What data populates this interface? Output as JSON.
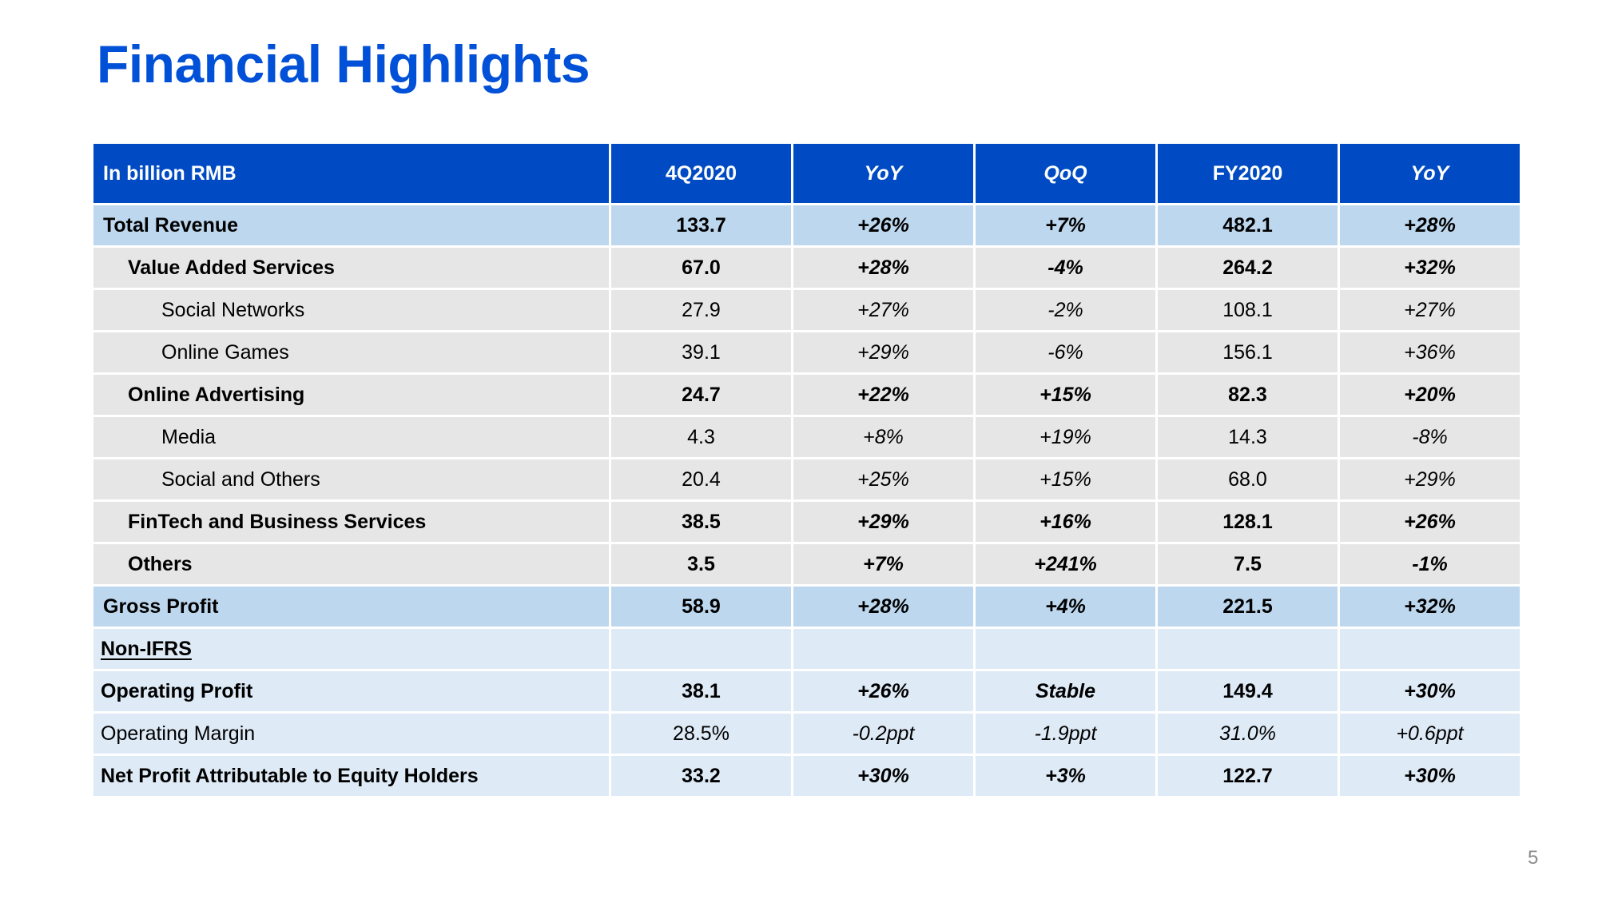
{
  "title": "Financial Highlights",
  "page_number": "5",
  "colors": {
    "title": "#0050d8",
    "header_bg": "#004bc3",
    "highlight_row_bg": "#bdd7ee",
    "segment_row_bg": "#e7e6e6",
    "non_ifrs_row_bg": "#deeaf6"
  },
  "table": {
    "headers": [
      "In billion RMB",
      "4Q2020",
      "YoY",
      "QoQ",
      "FY2020",
      "YoY"
    ],
    "rows": [
      {
        "label": "Total Revenue",
        "values": [
          "133.7",
          "+26%",
          "+7%",
          "482.1",
          "+28%"
        ]
      },
      {
        "label": "Value Added Services",
        "values": [
          "67.0",
          "+28%",
          "-4%",
          "264.2",
          "+32%"
        ]
      },
      {
        "label": "Social Networks",
        "values": [
          "27.9",
          "+27%",
          "-2%",
          "108.1",
          "+27%"
        ]
      },
      {
        "label": "Online Games",
        "values": [
          "39.1",
          "+29%",
          "-6%",
          "156.1",
          "+36%"
        ]
      },
      {
        "label": "Online Advertising",
        "values": [
          "24.7",
          "+22%",
          "+15%",
          "82.3",
          "+20%"
        ]
      },
      {
        "label": "Media",
        "values": [
          "4.3",
          "+8%",
          "+19%",
          "14.3",
          "-8%"
        ]
      },
      {
        "label": "Social and Others",
        "values": [
          "20.4",
          "+25%",
          "+15%",
          "68.0",
          "+29%"
        ]
      },
      {
        "label": "FinTech and Business Services",
        "values": [
          "38.5",
          "+29%",
          "+16%",
          "128.1",
          "+26%"
        ]
      },
      {
        "label": "Others",
        "values": [
          "3.5",
          "+7%",
          "+241%",
          "7.5",
          "-1%"
        ]
      },
      {
        "label": "Gross Profit",
        "values": [
          "58.9",
          "+28%",
          "+4%",
          "221.5",
          "+32%"
        ]
      },
      {
        "label": "Non-IFRS",
        "values": [
          "",
          "",
          "",
          "",
          ""
        ]
      },
      {
        "label": "Operating Profit",
        "values": [
          "38.1",
          "+26%",
          "Stable",
          "149.4",
          "+30%"
        ]
      },
      {
        "label": "Operating Margin",
        "values": [
          "28.5%",
          "-0.2ppt",
          "-1.9ppt",
          "31.0%",
          "+0.6ppt"
        ]
      },
      {
        "label": "Net Profit Attributable to Equity Holders",
        "values": [
          "33.2",
          "+30%",
          "+3%",
          "122.7",
          "+30%"
        ]
      }
    ]
  }
}
